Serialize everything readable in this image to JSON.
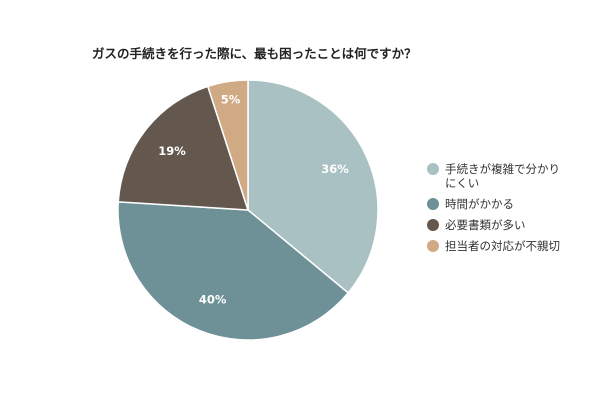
{
  "chart_data": {
    "type": "pie",
    "title": "ガスの手続きを行った際に、最も困ったことは何ですか？",
    "categories": [
      "手続きが複雑で分かりにくい",
      "時間がかかる",
      "必要書類が多い",
      "担当者の対応が不親切"
    ],
    "values": [
      36,
      40,
      19,
      5
    ],
    "data_labels": [
      "36%",
      "40%",
      "19%",
      "5%"
    ],
    "colors": [
      "#a9c1c2",
      "#6d9197",
      "#64574d",
      "#d0a985"
    ],
    "legend_position": "right",
    "start_angle": "12 o'clock",
    "direction": "clockwise"
  }
}
